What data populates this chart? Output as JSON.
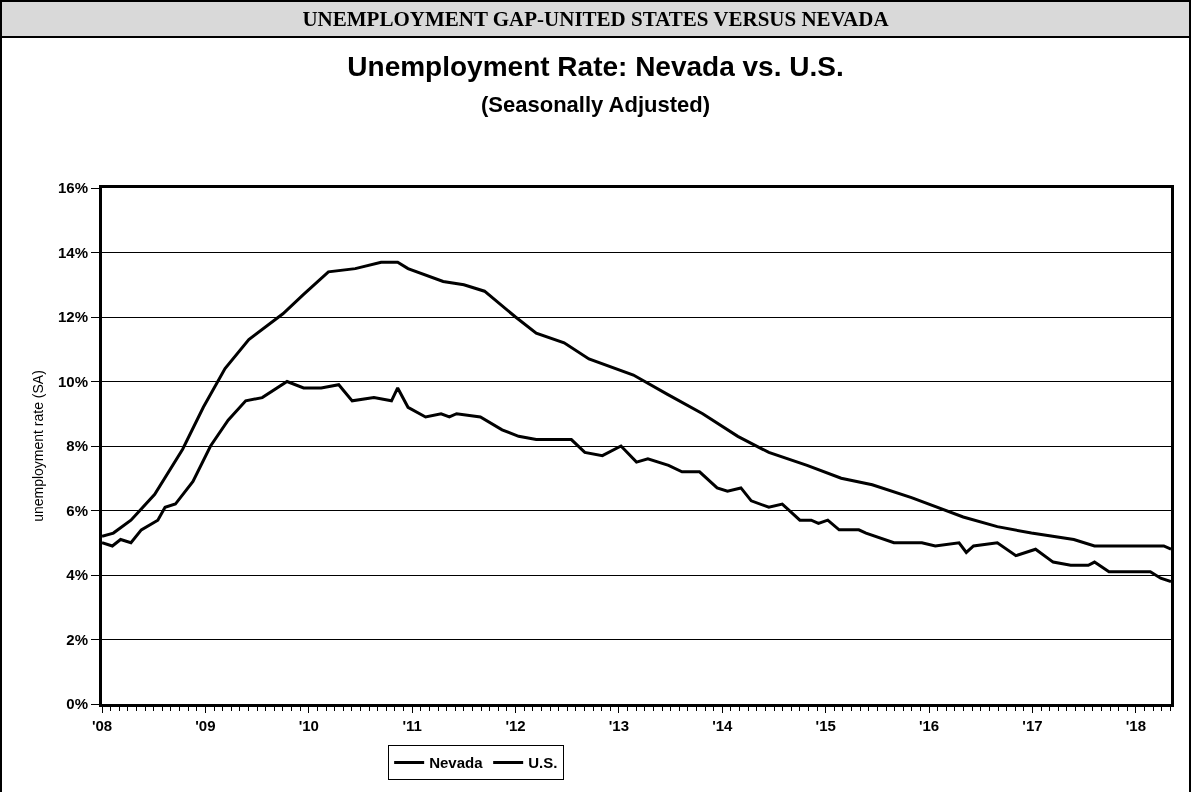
{
  "chart_data": {
    "type": "line",
    "title": "Unemployment Rate: Nevada vs. U.S.",
    "subtitle": "(Seasonally Adjusted)",
    "ylabel": "unemployment rate (SA)",
    "annotations": [
      "UNEMPLOYMENT GAP-UNITED STATES VERSUS NEVADA"
    ],
    "xlim": [
      2008,
      2018.34
    ],
    "xticks": [
      {
        "value": 2008,
        "label": "'08"
      },
      {
        "value": 2009,
        "label": "'09"
      },
      {
        "value": 2010,
        "label": "'10"
      },
      {
        "value": 2011,
        "label": "'11"
      },
      {
        "value": 2012,
        "label": "'12"
      },
      {
        "value": 2013,
        "label": "'13"
      },
      {
        "value": 2014,
        "label": "'14"
      },
      {
        "value": 2015,
        "label": "'15"
      },
      {
        "value": 2016,
        "label": "'16"
      },
      {
        "value": 2017,
        "label": "'17"
      },
      {
        "value": 2018,
        "label": "'18"
      }
    ],
    "ylim": [
      0,
      16
    ],
    "yticks": [
      {
        "value": 0,
        "label": "0%"
      },
      {
        "value": 2,
        "label": "2%"
      },
      {
        "value": 4,
        "label": "4%"
      },
      {
        "value": 6,
        "label": "6%"
      },
      {
        "value": 8,
        "label": "8%"
      },
      {
        "value": 10,
        "label": "10%"
      },
      {
        "value": 12,
        "label": "12%"
      },
      {
        "value": 14,
        "label": "14%"
      },
      {
        "value": 16,
        "label": "16%"
      }
    ],
    "grid": "y",
    "legend": "bottom",
    "marker": "none",
    "line_style": "solid",
    "series": [
      {
        "name": "Nevada",
        "color": "#000000",
        "x": [
          2008.0,
          2008.11,
          2008.28,
          2008.51,
          2008.78,
          2008.98,
          2009.19,
          2009.42,
          2009.75,
          2009.95,
          2010.19,
          2010.45,
          2010.7,
          2010.86,
          2010.96,
          2011.3,
          2011.5,
          2011.7,
          2012.0,
          2012.2,
          2012.47,
          2012.71,
          2013.14,
          2013.47,
          2013.81,
          2014.15,
          2014.45,
          2014.82,
          2015.15,
          2015.45,
          2015.83,
          2016.33,
          2016.66,
          2016.99,
          2017.4,
          2017.6,
          2018.27,
          2018.34
        ],
        "values": [
          5.2,
          5.3,
          5.7,
          6.5,
          7.9,
          9.2,
          10.4,
          11.3,
          12.1,
          12.7,
          13.4,
          13.5,
          13.7,
          13.7,
          13.5,
          13.1,
          13.0,
          12.8,
          12.0,
          11.5,
          11.2,
          10.7,
          10.2,
          9.6,
          9.0,
          8.3,
          7.8,
          7.4,
          7.0,
          6.8,
          6.4,
          5.8,
          5.5,
          5.3,
          5.1,
          4.9,
          4.9,
          4.8
        ]
      },
      {
        "name": "U.S.",
        "color": "#000000",
        "x": [
          2008.0,
          2008.1,
          2008.18,
          2008.28,
          2008.38,
          2008.54,
          2008.61,
          2008.71,
          2008.88,
          2009.05,
          2009.22,
          2009.39,
          2009.55,
          2009.79,
          2009.95,
          2010.12,
          2010.29,
          2010.42,
          2010.63,
          2010.8,
          2010.86,
          2010.96,
          2011.13,
          2011.28,
          2011.36,
          2011.43,
          2011.66,
          2011.87,
          2012.03,
          2012.2,
          2012.54,
          2012.67,
          2012.84,
          2013.02,
          2013.17,
          2013.28,
          2013.48,
          2013.61,
          2013.78,
          2013.95,
          2014.05,
          2014.18,
          2014.28,
          2014.45,
          2014.58,
          2014.75,
          2014.86,
          2014.93,
          2015.02,
          2015.13,
          2015.32,
          2015.39,
          2015.66,
          2015.93,
          2016.06,
          2016.29,
          2016.36,
          2016.43,
          2016.66,
          2016.84,
          2017.03,
          2017.2,
          2017.37,
          2017.54,
          2017.6,
          2017.74,
          2018.14,
          2018.24,
          2018.34
        ],
        "values": [
          5.0,
          4.9,
          5.1,
          5.0,
          5.4,
          5.7,
          6.1,
          6.2,
          6.9,
          8.0,
          8.8,
          9.4,
          9.5,
          10.0,
          9.8,
          9.8,
          9.9,
          9.4,
          9.5,
          9.4,
          9.8,
          9.2,
          8.9,
          9.0,
          8.9,
          9.0,
          8.9,
          8.5,
          8.3,
          8.2,
          8.2,
          7.8,
          7.7,
          8.0,
          7.5,
          7.6,
          7.4,
          7.2,
          7.2,
          6.7,
          6.6,
          6.7,
          6.3,
          6.1,
          6.2,
          5.7,
          5.7,
          5.6,
          5.7,
          5.4,
          5.4,
          5.3,
          5.0,
          5.0,
          4.9,
          5.0,
          4.7,
          4.9,
          5.0,
          4.6,
          4.8,
          4.4,
          4.3,
          4.3,
          4.4,
          4.1,
          4.1,
          3.9,
          3.8
        ]
      }
    ]
  }
}
